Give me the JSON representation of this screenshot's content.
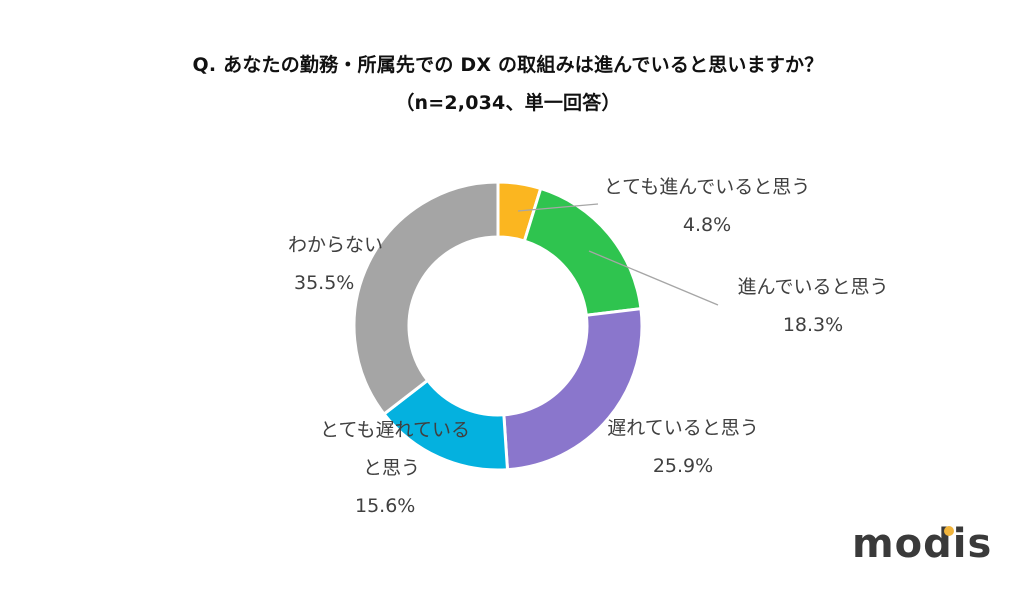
{
  "title": {
    "line1": "Q. あなたの勤務・所属先での DX の取組みは進んでいると思いますか？",
    "line2": "（n=2,034、単一回答）"
  },
  "labels": [
    {
      "name": "とても進んでいると思う",
      "pct": "4.8%"
    },
    {
      "name": "進んでいると思う",
      "pct": "18.3%"
    },
    {
      "name": "遅れていると思う",
      "pct": "25.9%"
    },
    {
      "name_line1": "とても遅れている",
      "name_line2": "と思う",
      "pct": "15.6%"
    },
    {
      "name": "わからない",
      "pct": "35.5%"
    }
  ],
  "logo": {
    "text": "modis",
    "dot_color": "#f0b43c"
  },
  "chart_data": {
    "type": "pie",
    "variant": "donut",
    "title": "Q. あなたの勤務・所属先での DX の取組みは進んでいると思いますか？",
    "subtitle": "（n=2,034、単一回答）",
    "categories": [
      "とても進んでいると思う",
      "進んでいると思う",
      "遅れていると思う",
      "とても遅れていると思う",
      "わからない"
    ],
    "values": [
      4.8,
      18.3,
      25.9,
      15.6,
      35.5
    ],
    "unit": "%",
    "colors": [
      "#fbb620",
      "#2fc44f",
      "#8a76cc",
      "#04b1df",
      "#a5a5a5"
    ],
    "start_angle_deg": 0,
    "direction": "clockwise",
    "legend": "none (data labels with category names)",
    "n": 2034
  }
}
